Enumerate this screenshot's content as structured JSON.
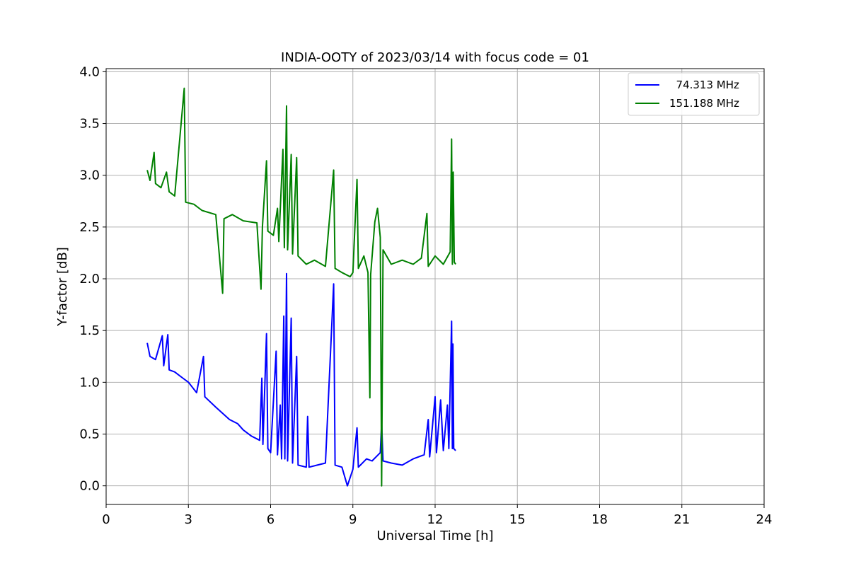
{
  "chart_data": {
    "type": "line",
    "title": "INDIA-OOTY of 2023/03/14 with focus code = 01",
    "xlabel": "Universal Time [h]",
    "ylabel": "Y-factor [dB]",
    "xlim": [
      0,
      24
    ],
    "ylim": [
      -0.18,
      4.03
    ],
    "xticks": [
      0,
      3,
      6,
      9,
      12,
      15,
      18,
      21,
      24
    ],
    "xtick_labels": [
      "0",
      "3",
      "6",
      "9",
      "12",
      "15",
      "18",
      "21",
      "24"
    ],
    "yticks": [
      0.0,
      0.5,
      1.0,
      1.5,
      2.0,
      2.5,
      3.0,
      3.5,
      4.0
    ],
    "ytick_labels": [
      "0.0",
      "0.5",
      "1.0",
      "1.5",
      "2.0",
      "2.5",
      "3.0",
      "3.5",
      "4.0"
    ],
    "grid": true,
    "legend_position": "top-right",
    "series": [
      {
        "name": "74.313 MHz",
        "legend_label": "  74.313 MHz",
        "color": "#0000ff",
        "points": [
          [
            1.5,
            1.38
          ],
          [
            1.6,
            1.25
          ],
          [
            1.8,
            1.22
          ],
          [
            2.05,
            1.45
          ],
          [
            2.1,
            1.16
          ],
          [
            2.25,
            1.46
          ],
          [
            2.3,
            1.12
          ],
          [
            2.5,
            1.1
          ],
          [
            2.8,
            1.04
          ],
          [
            3.0,
            1.0
          ],
          [
            3.3,
            0.9
          ],
          [
            3.55,
            1.25
          ],
          [
            3.6,
            0.86
          ],
          [
            4.0,
            0.76
          ],
          [
            4.5,
            0.64
          ],
          [
            4.8,
            0.6
          ],
          [
            5.0,
            0.54
          ],
          [
            5.3,
            0.48
          ],
          [
            5.6,
            0.44
          ],
          [
            5.68,
            1.04
          ],
          [
            5.72,
            0.4
          ],
          [
            5.85,
            1.47
          ],
          [
            5.9,
            0.36
          ],
          [
            6.0,
            0.32
          ],
          [
            6.2,
            1.3
          ],
          [
            6.25,
            0.3
          ],
          [
            6.35,
            0.78
          ],
          [
            6.4,
            0.26
          ],
          [
            6.48,
            1.64
          ],
          [
            6.52,
            0.26
          ],
          [
            6.58,
            2.05
          ],
          [
            6.62,
            0.24
          ],
          [
            6.75,
            1.62
          ],
          [
            6.8,
            0.22
          ],
          [
            6.95,
            1.25
          ],
          [
            7.0,
            0.2
          ],
          [
            7.3,
            0.18
          ],
          [
            7.35,
            0.67
          ],
          [
            7.4,
            0.18
          ],
          [
            7.7,
            0.2
          ],
          [
            8.0,
            0.22
          ],
          [
            8.3,
            1.95
          ],
          [
            8.35,
            0.2
          ],
          [
            8.6,
            0.18
          ],
          [
            8.8,
            0.0
          ],
          [
            9.0,
            0.16
          ],
          [
            9.15,
            0.56
          ],
          [
            9.2,
            0.18
          ],
          [
            9.5,
            0.26
          ],
          [
            9.7,
            0.24
          ],
          [
            10.0,
            0.32
          ],
          [
            10.05,
            0.61
          ],
          [
            10.1,
            0.24
          ],
          [
            10.4,
            0.22
          ],
          [
            10.8,
            0.2
          ],
          [
            11.2,
            0.26
          ],
          [
            11.6,
            0.3
          ],
          [
            11.75,
            0.64
          ],
          [
            11.8,
            0.28
          ],
          [
            12.0,
            0.86
          ],
          [
            12.05,
            0.32
          ],
          [
            12.2,
            0.83
          ],
          [
            12.3,
            0.34
          ],
          [
            12.45,
            0.78
          ],
          [
            12.5,
            0.36
          ],
          [
            12.6,
            1.59
          ],
          [
            12.63,
            0.36
          ],
          [
            12.65,
            1.37
          ],
          [
            12.68,
            0.36
          ],
          [
            12.75,
            0.34
          ]
        ]
      },
      {
        "name": "151.188 MHz",
        "legend_label": "151.188 MHz",
        "color": "#008000",
        "points": [
          [
            1.5,
            3.05
          ],
          [
            1.6,
            2.95
          ],
          [
            1.75,
            3.22
          ],
          [
            1.8,
            2.92
          ],
          [
            2.0,
            2.88
          ],
          [
            2.2,
            3.03
          ],
          [
            2.3,
            2.84
          ],
          [
            2.5,
            2.8
          ],
          [
            2.85,
            3.84
          ],
          [
            2.9,
            2.74
          ],
          [
            3.2,
            2.72
          ],
          [
            3.5,
            2.66
          ],
          [
            4.0,
            2.62
          ],
          [
            4.25,
            1.86
          ],
          [
            4.3,
            2.58
          ],
          [
            4.6,
            2.62
          ],
          [
            5.0,
            2.56
          ],
          [
            5.5,
            2.54
          ],
          [
            5.65,
            1.9
          ],
          [
            5.7,
            2.5
          ],
          [
            5.85,
            3.14
          ],
          [
            5.9,
            2.46
          ],
          [
            6.1,
            2.42
          ],
          [
            6.25,
            2.68
          ],
          [
            6.3,
            2.36
          ],
          [
            6.45,
            3.25
          ],
          [
            6.5,
            2.3
          ],
          [
            6.58,
            3.67
          ],
          [
            6.62,
            2.28
          ],
          [
            6.75,
            3.2
          ],
          [
            6.8,
            2.24
          ],
          [
            6.95,
            3.17
          ],
          [
            7.0,
            2.22
          ],
          [
            7.3,
            2.14
          ],
          [
            7.6,
            2.18
          ],
          [
            8.0,
            2.12
          ],
          [
            8.3,
            3.05
          ],
          [
            8.35,
            2.1
          ],
          [
            8.6,
            2.06
          ],
          [
            8.9,
            2.02
          ],
          [
            9.0,
            2.06
          ],
          [
            9.15,
            2.96
          ],
          [
            9.2,
            2.1
          ],
          [
            9.4,
            2.22
          ],
          [
            9.55,
            2.06
          ],
          [
            9.62,
            0.85
          ],
          [
            9.65,
            2.04
          ],
          [
            9.8,
            2.55
          ],
          [
            9.9,
            2.68
          ],
          [
            10.0,
            2.4
          ],
          [
            10.05,
            0.0
          ],
          [
            10.1,
            2.28
          ],
          [
            10.4,
            2.14
          ],
          [
            10.8,
            2.18
          ],
          [
            11.2,
            2.14
          ],
          [
            11.5,
            2.2
          ],
          [
            11.7,
            2.63
          ],
          [
            11.75,
            2.12
          ],
          [
            12.0,
            2.22
          ],
          [
            12.3,
            2.14
          ],
          [
            12.55,
            2.26
          ],
          [
            12.6,
            3.35
          ],
          [
            12.63,
            2.14
          ],
          [
            12.66,
            3.03
          ],
          [
            12.7,
            2.16
          ],
          [
            12.75,
            2.14
          ]
        ]
      }
    ]
  }
}
